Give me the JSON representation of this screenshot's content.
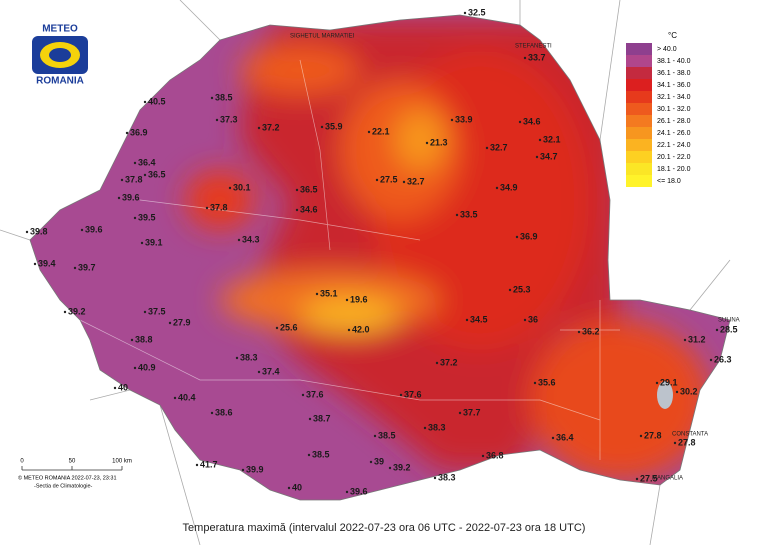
{
  "logo": {
    "top": "METEO",
    "bottom": "ROMANIA"
  },
  "legend": {
    "unit": "°C",
    "items": [
      {
        "label": "> 40.0",
        "color": "#8e3f8e"
      },
      {
        "label": "38.1 - 40.0",
        "color": "#b0468c"
      },
      {
        "label": "36.1 - 38.0",
        "color": "#c42a3f"
      },
      {
        "label": "34.1 - 36.0",
        "color": "#dc1f1f"
      },
      {
        "label": "32.1 - 34.0",
        "color": "#e63a1c"
      },
      {
        "label": "30.1 - 32.0",
        "color": "#ee5a1e"
      },
      {
        "label": "26.1 - 28.0",
        "color": "#f47a20"
      },
      {
        "label": "24.1 - 26.0",
        "color": "#f7961f"
      },
      {
        "label": "22.1 - 24.0",
        "color": "#fbb321"
      },
      {
        "label": "20.1 - 22.0",
        "color": "#fdd022"
      },
      {
        "label": "18.1 - 20.0",
        "color": "#fbe626"
      },
      {
        "label": "<= 18.0",
        "color": "#fff32a"
      }
    ]
  },
  "caption": "Temperatura maximă (intervalul 2022-07-23 ora 06 UTC - 2022-07-23 ora 18 UTC)",
  "scale": [
    "0",
    "50",
    "100 km"
  ],
  "credits": [
    "© METEO ROMANIA 2022-07-23, 23:31",
    "-Sectia de Climatologie-"
  ],
  "places": [
    "SIGHETUL MARMATIEI",
    "STEFANESTI",
    "SULINA",
    "CONSTANTA",
    "MANGALIA"
  ],
  "stations": [
    "32.5",
    "33.7",
    "38.5",
    "40.5",
    "36.9",
    "37.3",
    "37.2",
    "35.9",
    "22.1",
    "33.9",
    "34.6",
    "32.1",
    "21.3",
    "32.7",
    "34.7",
    "36.4",
    "36.5",
    "37.8",
    "39.6",
    "30.1",
    "36.5",
    "27.5",
    "32.7",
    "34.9",
    "37.8",
    "33.5",
    "34.6",
    "39.5",
    "39.6",
    "39.8",
    "39.1",
    "34.3",
    "36.9",
    "39.4",
    "39.7",
    "35.1",
    "19.6",
    "25.3",
    "39.2",
    "37.5",
    "27.9",
    "42.0",
    "25.6",
    "34.5",
    "36",
    "36.2",
    "31.2",
    "28.5",
    "40.9",
    "38.3",
    "37.4",
    "37.2",
    "35.6",
    "29.1",
    "30.2",
    "40.4",
    "37.6",
    "37.6",
    "38.6",
    "38.7",
    "37.7",
    "36.4",
    "27.8",
    "27.8",
    "38.3",
    "38.5",
    "39",
    "39.2",
    "36.8",
    "41.7",
    "39.9",
    "38.5",
    "40",
    "39.6",
    "38.3",
    "27.5",
    "38.8",
    "40",
    "26.3"
  ]
}
